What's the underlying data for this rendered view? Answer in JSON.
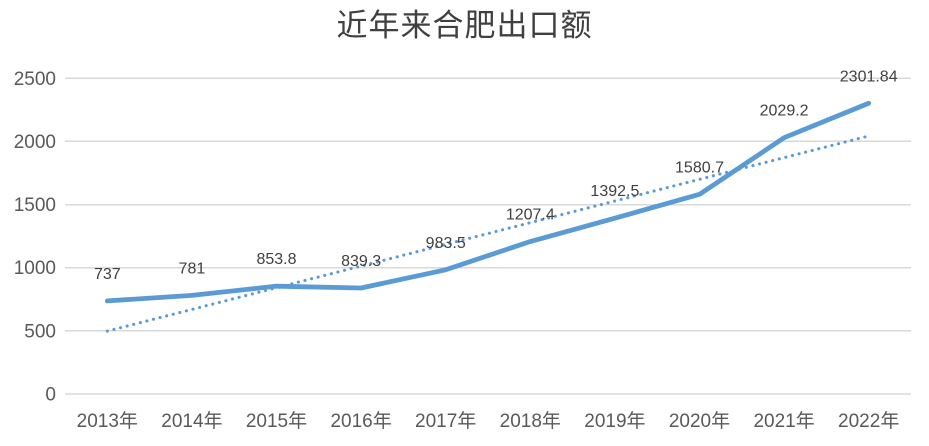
{
  "chart_data": {
    "type": "line",
    "title": "近年来合肥出口额",
    "categories": [
      "2013年",
      "2014年",
      "2015年",
      "2016年",
      "2017年",
      "2018年",
      "2019年",
      "2020年",
      "2021年",
      "2022年"
    ],
    "values": [
      737,
      781,
      853.8,
      839.3,
      983.5,
      1207.4,
      1392.5,
      1580.7,
      2029.2,
      2301.84
    ],
    "data_labels": [
      "737",
      "781",
      "853.8",
      "839.3",
      "983.5",
      "1207.4",
      "1392.5",
      "1580.7",
      "2029.2",
      "2301.84"
    ],
    "y_ticks": [
      0,
      500,
      1000,
      1500,
      2000,
      2500
    ],
    "ylim": [
      0,
      2500
    ],
    "grid": true,
    "legend": "none",
    "trendline": {
      "type": "linear-dotted",
      "start_value": 498,
      "end_value": 2043
    },
    "colors": {
      "series": "#5B9BD5",
      "trendline": "#5B9BD5",
      "gridline": "#D9D9D9",
      "axis_line": "#C9C9C9",
      "axis_text": "#595959",
      "data_label_text": "#404040",
      "title_text": "#404040"
    }
  }
}
